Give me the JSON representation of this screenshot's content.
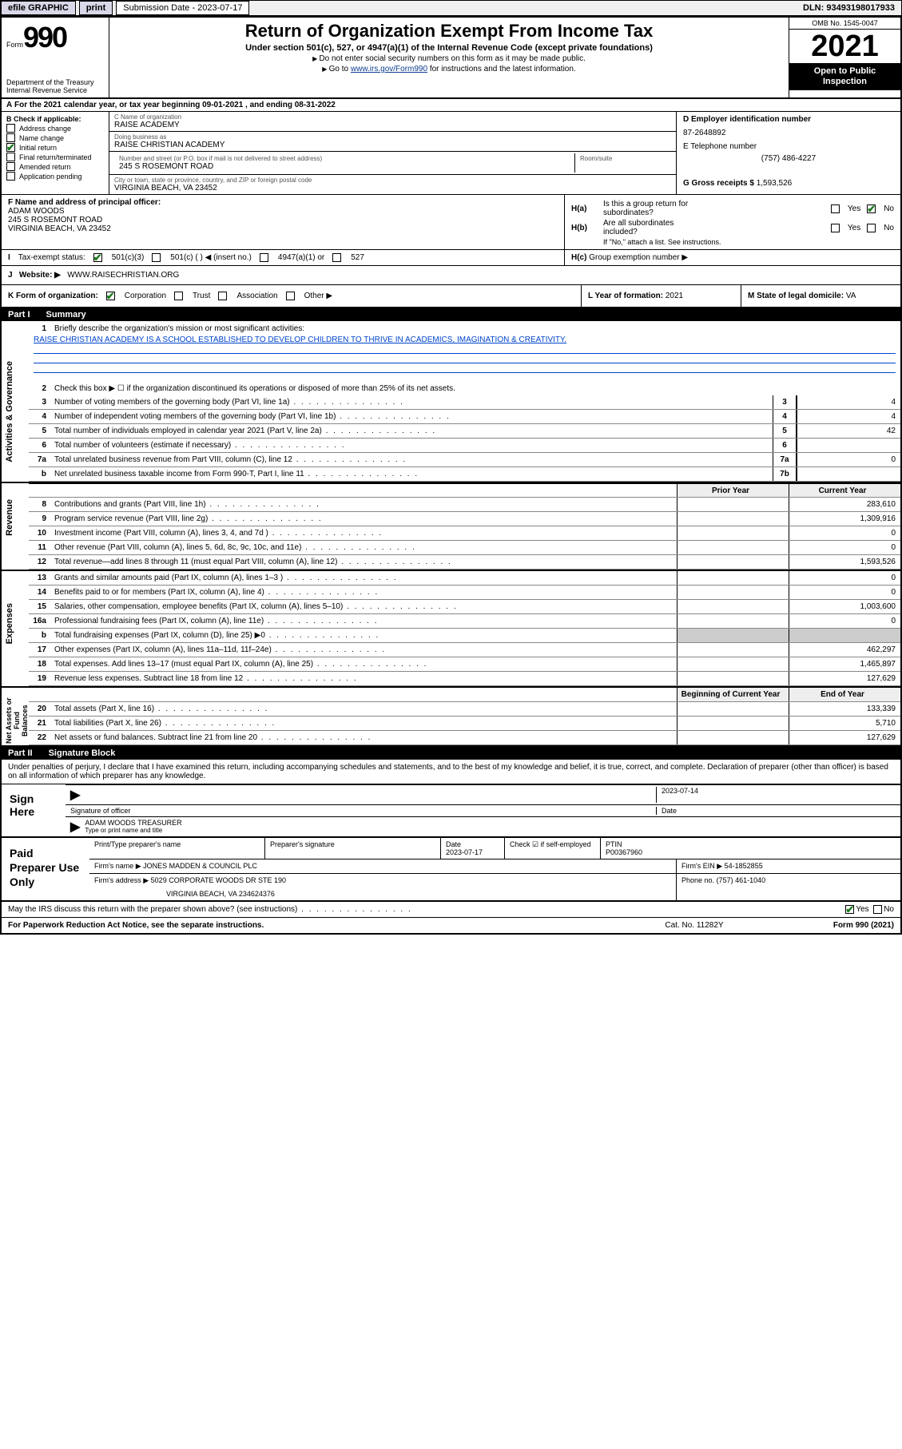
{
  "topbar": {
    "efile": "efile GRAPHIC",
    "print": "print",
    "submission": "Submission Date - 2023-07-17",
    "dln": "DLN: 93493198017933"
  },
  "header": {
    "form_prefix": "Form",
    "form_num": "990",
    "title": "Return of Organization Exempt From Income Tax",
    "sub1": "Under section 501(c), 527, or 4947(a)(1) of the Internal Revenue Code (except private foundations)",
    "sub2": "Do not enter social security numbers on this form as it may be made public.",
    "sub3_pre": "Go to ",
    "sub3_link": "www.irs.gov/Form990",
    "sub3_post": " for instructions and the latest information.",
    "dept": "Department of the Treasury",
    "irs": "Internal Revenue Service",
    "omb": "OMB No. 1545-0047",
    "year": "2021",
    "open_insp": "Open to Public Inspection"
  },
  "row_a": "For the 2021 calendar year, or tax year beginning 09-01-2021   , and ending 08-31-2022",
  "col_b": {
    "label": "B Check if applicable:",
    "items": [
      "Address change",
      "Name change",
      "Initial return",
      "Final return/terminated",
      "Amended return",
      "Application pending"
    ],
    "checked_idx": 2
  },
  "col_c": {
    "name_lbl": "C Name of organization",
    "name": "RAISE ACADEMY",
    "dba_lbl": "Doing business as",
    "dba": "RAISE CHRISTIAN ACADEMY",
    "street_lbl": "Number and street (or P.O. box if mail is not delivered to street address)",
    "street": "245 S ROSEMONT ROAD",
    "room_lbl": "Room/suite",
    "room": "",
    "city_lbl": "City or town, state or province, country, and ZIP or foreign postal code",
    "city": "VIRGINIA BEACH, VA  23452"
  },
  "col_deg": {
    "d_lbl": "D Employer identification number",
    "d_val": "87-2648892",
    "e_lbl": "E Telephone number",
    "e_val": "(757) 486-4227",
    "g_lbl": "G Gross receipts $",
    "g_val": "1,593,526"
  },
  "col_f": {
    "lbl": "F Name and address of principal officer:",
    "name": "ADAM WOODS",
    "addr1": "245 S ROSEMONT ROAD",
    "addr2": "VIRGINIA BEACH, VA  23452"
  },
  "col_h": {
    "ha_lbl": "H(a)",
    "ha_txt1": "Is this a group return for",
    "ha_txt2": "subordinates?",
    "hb_lbl": "H(b)",
    "hb_txt1": "Are all subordinates",
    "hb_txt2": "included?",
    "hb_note": "If \"No,\" attach a list. See instructions.",
    "hc_lbl": "H(c)",
    "hc_txt": "Group exemption number ▶",
    "yes": "Yes",
    "no": "No"
  },
  "row_i": {
    "lbl": "Tax-exempt status:",
    "opt1": "501(c)(3)",
    "opt2": "501(c) (  ) ◀ (insert no.)",
    "opt3": "4947(a)(1) or",
    "opt4": "527"
  },
  "row_j": {
    "lbl": "Website: ▶",
    "val": "WWW.RAISECHRISTIAN.ORG"
  },
  "row_k": {
    "lbl": "K Form of organization:",
    "opts": [
      "Corporation",
      "Trust",
      "Association",
      "Other ▶"
    ]
  },
  "row_l": {
    "lbl": "L Year of formation:",
    "val": "2021"
  },
  "row_m": {
    "lbl": "M State of legal domicile:",
    "val": "VA"
  },
  "part1": {
    "num": "Part I",
    "title": "Summary",
    "tab1": "Activities & Governance",
    "tab2": "Revenue",
    "tab3": "Expenses",
    "tab4": "Net Assets or Fund Balances",
    "line1_lbl": "Briefly describe the organization's mission or most significant activities:",
    "line1_val": "RAISE CHRISTIAN ACADEMY IS A SCHOOL ESTABLISHED TO DEVELOP CHILDREN TO THRIVE IN ACADEMICS, IMAGINATION & CREATIVITY.",
    "line2": "Check this box ▶ ☐  if the organization discontinued its operations or disposed of more than 25% of its net assets.",
    "lines_gov": [
      {
        "n": "3",
        "t": "Number of voting members of the governing body (Part VI, line 1a)",
        "b": "3",
        "v": "4"
      },
      {
        "n": "4",
        "t": "Number of independent voting members of the governing body (Part VI, line 1b)",
        "b": "4",
        "v": "4"
      },
      {
        "n": "5",
        "t": "Total number of individuals employed in calendar year 2021 (Part V, line 2a)",
        "b": "5",
        "v": "42"
      },
      {
        "n": "6",
        "t": "Total number of volunteers (estimate if necessary)",
        "b": "6",
        "v": ""
      },
      {
        "n": "7a",
        "t": "Total unrelated business revenue from Part VIII, column (C), line 12",
        "b": "7a",
        "v": "0"
      },
      {
        "n": "b",
        "t": "Net unrelated business taxable income from Form 990-T, Part I, line 11",
        "b": "7b",
        "v": ""
      }
    ],
    "col_py": "Prior Year",
    "col_cy": "Current Year",
    "col_bcy": "Beginning of Current Year",
    "col_eoy": "End of Year",
    "lines_rev": [
      {
        "n": "8",
        "t": "Contributions and grants (Part VIII, line 1h)",
        "py": "",
        "cy": "283,610"
      },
      {
        "n": "9",
        "t": "Program service revenue (Part VIII, line 2g)",
        "py": "",
        "cy": "1,309,916"
      },
      {
        "n": "10",
        "t": "Investment income (Part VIII, column (A), lines 3, 4, and 7d )",
        "py": "",
        "cy": "0"
      },
      {
        "n": "11",
        "t": "Other revenue (Part VIII, column (A), lines 5, 6d, 8c, 9c, 10c, and 11e)",
        "py": "",
        "cy": "0"
      },
      {
        "n": "12",
        "t": "Total revenue—add lines 8 through 11 (must equal Part VIII, column (A), line 12)",
        "py": "",
        "cy": "1,593,526"
      }
    ],
    "lines_exp": [
      {
        "n": "13",
        "t": "Grants and similar amounts paid (Part IX, column (A), lines 1–3 )",
        "py": "",
        "cy": "0"
      },
      {
        "n": "14",
        "t": "Benefits paid to or for members (Part IX, column (A), line 4)",
        "py": "",
        "cy": "0"
      },
      {
        "n": "15",
        "t": "Salaries, other compensation, employee benefits (Part IX, column (A), lines 5–10)",
        "py": "",
        "cy": "1,003,600"
      },
      {
        "n": "16a",
        "t": "Professional fundraising fees (Part IX, column (A), line 11e)",
        "py": "",
        "cy": "0"
      },
      {
        "n": "b",
        "t": "Total fundraising expenses (Part IX, column (D), line 25) ▶0",
        "py": "shade",
        "cy": "shade"
      },
      {
        "n": "17",
        "t": "Other expenses (Part IX, column (A), lines 11a–11d, 11f–24e)",
        "py": "",
        "cy": "462,297"
      },
      {
        "n": "18",
        "t": "Total expenses. Add lines 13–17 (must equal Part IX, column (A), line 25)",
        "py": "",
        "cy": "1,465,897"
      },
      {
        "n": "19",
        "t": "Revenue less expenses. Subtract line 18 from line 12",
        "py": "",
        "cy": "127,629"
      }
    ],
    "lines_net": [
      {
        "n": "20",
        "t": "Total assets (Part X, line 16)",
        "py": "",
        "cy": "133,339"
      },
      {
        "n": "21",
        "t": "Total liabilities (Part X, line 26)",
        "py": "",
        "cy": "5,710"
      },
      {
        "n": "22",
        "t": "Net assets or fund balances. Subtract line 21 from line 20",
        "py": "",
        "cy": "127,629"
      }
    ]
  },
  "part2": {
    "num": "Part II",
    "title": "Signature Block",
    "perjury": "Under penalties of perjury, I declare that I have examined this return, including accompanying schedules and statements, and to the best of my knowledge and belief, it is true, correct, and complete. Declaration of preparer (other than officer) is based on all information of which preparer has any knowledge.",
    "sign_here": "Sign Here",
    "sig_officer": "Signature of officer",
    "sig_date_lbl": "Date",
    "sig_date": "2023-07-14",
    "sig_name": "ADAM WOODS TREASURER",
    "sig_name_lbl": "Type or print name and title",
    "paid": "Paid Preparer Use Only",
    "prep_name_lbl": "Print/Type preparer's name",
    "prep_sig_lbl": "Preparer's signature",
    "prep_date_lbl": "Date",
    "prep_date": "2023-07-17",
    "prep_chk_lbl": "Check ☑ if self-employed",
    "prep_ptin_lbl": "PTIN",
    "prep_ptin": "P00367960",
    "firm_name_lbl": "Firm's name    ▶",
    "firm_name": "JONES MADDEN & COUNCIL PLC",
    "firm_ein_lbl": "Firm's EIN ▶",
    "firm_ein": "54-1852855",
    "firm_addr_lbl": "Firm's address ▶",
    "firm_addr1": "5029 CORPORATE WOODS DR STE 190",
    "firm_addr2": "VIRGINIA BEACH, VA  234624376",
    "firm_phone_lbl": "Phone no.",
    "firm_phone": "(757) 461-1040",
    "discuss": "May the IRS discuss this return with the preparer shown above? (see instructions)",
    "yes": "Yes",
    "no": "No"
  },
  "footer": {
    "paperwork": "For Paperwork Reduction Act Notice, see the separate instructions.",
    "cat": "Cat. No. 11282Y",
    "form": "Form 990 (2021)"
  }
}
